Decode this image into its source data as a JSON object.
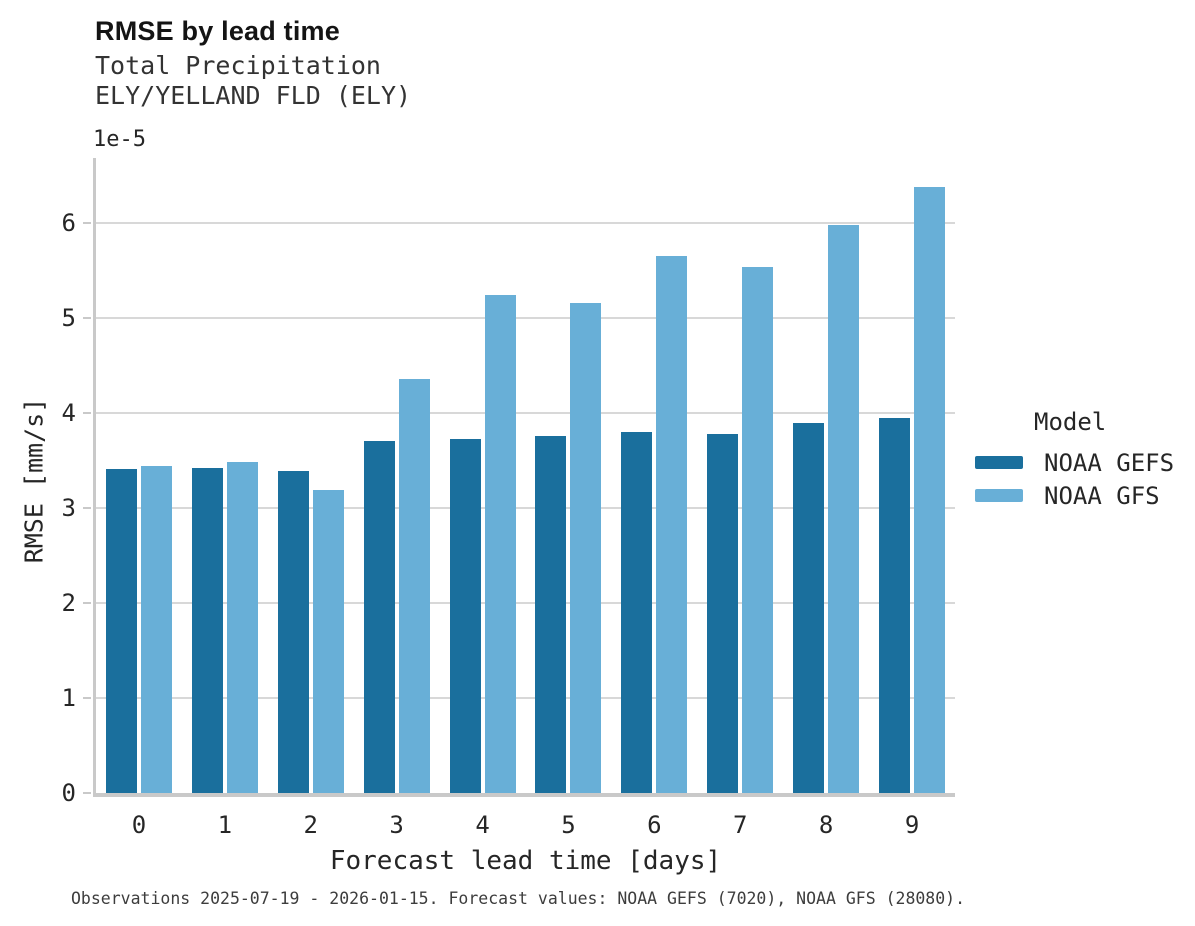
{
  "title": "RMSE by lead time",
  "subtitle_lines": [
    "Total Precipitation",
    "ELY/YELLAND FLD (ELY)"
  ],
  "offset_label": "1e-5",
  "footer": "Observations 2025-07-19 - 2026-01-15. Forecast values: NOAA GEFS (7020), NOAA GFS (28080).",
  "colors": {
    "gefs_bar": "#1a6f9d",
    "gfs_bar": "#68afd7",
    "gridline": "#d8d8d8",
    "axis_spine": "#c9c9c9",
    "text": "#262626"
  },
  "chart_data": {
    "type": "bar",
    "title": "RMSE by lead time",
    "subtitle": "Total Precipitation ELY/YELLAND FLD (ELY)",
    "xlabel": "Forecast lead time [days]",
    "ylabel": "RMSE [mm/s]",
    "y_offset_multiplier": "1e-5",
    "legend_title": "Model",
    "legend_position": "right",
    "grid": "horizontal",
    "categories": [
      "0",
      "1",
      "2",
      "3",
      "4",
      "5",
      "6",
      "7",
      "8",
      "9"
    ],
    "series": [
      {
        "name": "NOAA GEFS",
        "color": "#1a6f9d",
        "values": [
          3.41,
          3.42,
          3.39,
          3.7,
          3.72,
          3.76,
          3.8,
          3.78,
          3.89,
          3.95
        ]
      },
      {
        "name": "NOAA GFS",
        "color": "#68afd7",
        "values": [
          3.44,
          3.48,
          3.19,
          4.36,
          5.24,
          5.16,
          5.65,
          5.53,
          5.98,
          6.37
        ]
      }
    ],
    "values_unit_note": "values are in units of 1e-5 mm/s",
    "ylim": [
      0,
      6.68
    ],
    "yticks": [
      0,
      1,
      2,
      3,
      4,
      5,
      6
    ]
  }
}
